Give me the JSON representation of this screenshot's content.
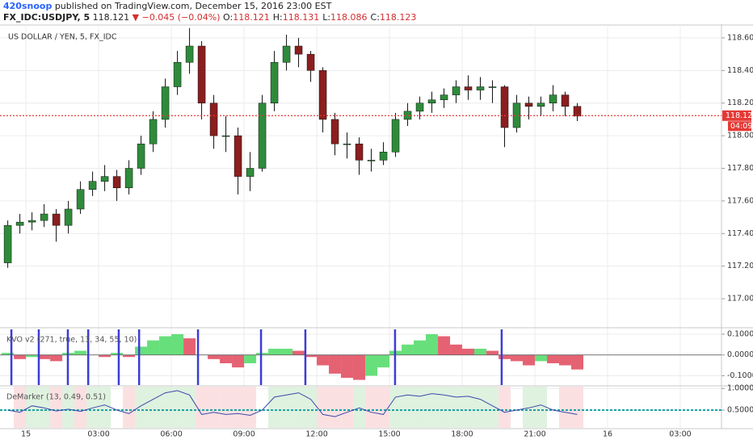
{
  "header": {
    "author": "420snoop",
    "published": "published on TradingView.com, December 15, 2016 23:00 EST",
    "symbol": "FX_IDC:USDJPY, 5",
    "last": "118.121",
    "change": "▼ −0.045 (−0.04%)",
    "ohlc": [
      [
        "O:",
        "118.121"
      ],
      [
        "H:",
        "118.131"
      ],
      [
        "L:",
        "118.086"
      ],
      [
        "C:",
        "118.123"
      ]
    ]
  },
  "chart_data": [
    {
      "type": "candlestick",
      "title": "US DOLLAR / YEN, 5, FX_IDC",
      "x": [
        -0.75,
        -0.25,
        0.25,
        0.75,
        1.25,
        1.75,
        2.25,
        2.75,
        3.25,
        3.75,
        4.25,
        4.75,
        5.25,
        5.75,
        6.25,
        6.75,
        7.25,
        7.75,
        8.25,
        8.75,
        9.25,
        9.75,
        10.25,
        10.75,
        11.25,
        11.75,
        12.25,
        12.75,
        13.25,
        13.75,
        14.25,
        14.75,
        15.25,
        15.75,
        16.25,
        16.75,
        17.25,
        17.75,
        18.25,
        18.75,
        19.25,
        19.75,
        20.25,
        20.75,
        21.25,
        21.75,
        22.25,
        22.75
      ],
      "open": [
        117.22,
        117.45,
        117.47,
        117.48,
        117.52,
        117.45,
        117.55,
        117.67,
        117.72,
        117.75,
        117.68,
        117.8,
        117.95,
        118.1,
        118.3,
        118.45,
        118.55,
        118.2,
        118.0,
        118.0,
        117.75,
        117.8,
        118.2,
        118.45,
        118.55,
        118.5,
        118.4,
        118.1,
        117.95,
        117.95,
        117.85,
        117.85,
        117.9,
        118.1,
        118.15,
        118.2,
        118.22,
        118.25,
        118.3,
        118.28,
        118.3,
        118.3,
        118.05,
        118.2,
        118.18,
        118.2,
        118.25,
        118.18
      ],
      "high": [
        117.48,
        117.52,
        117.53,
        117.58,
        117.55,
        117.6,
        117.72,
        117.78,
        117.82,
        117.79,
        117.85,
        118.0,
        118.15,
        118.35,
        118.52,
        118.66,
        118.58,
        118.25,
        118.12,
        118.05,
        117.9,
        118.25,
        118.52,
        118.62,
        118.6,
        118.52,
        118.42,
        118.14,
        118.02,
        117.99,
        117.92,
        117.96,
        118.14,
        118.2,
        118.24,
        118.27,
        118.29,
        118.34,
        118.37,
        118.36,
        118.34,
        118.31,
        118.25,
        118.24,
        118.24,
        118.31,
        118.27,
        118.2
      ],
      "low": [
        117.19,
        117.4,
        117.42,
        117.44,
        117.35,
        117.4,
        117.52,
        117.63,
        117.66,
        117.6,
        117.64,
        117.76,
        117.9,
        118.05,
        118.25,
        118.38,
        118.1,
        117.92,
        117.9,
        117.64,
        117.66,
        117.78,
        118.15,
        118.4,
        118.42,
        118.33,
        118.02,
        117.88,
        117.86,
        117.76,
        117.78,
        117.82,
        117.87,
        118.06,
        118.1,
        118.14,
        118.17,
        118.2,
        118.22,
        118.22,
        118.2,
        117.93,
        118.02,
        118.1,
        118.12,
        118.15,
        118.12,
        118.09
      ],
      "close": [
        117.45,
        117.47,
        117.48,
        117.52,
        117.45,
        117.55,
        117.67,
        117.72,
        117.75,
        117.68,
        117.8,
        117.95,
        118.1,
        118.3,
        118.45,
        118.55,
        118.2,
        118.0,
        118.0,
        117.75,
        117.8,
        118.2,
        118.45,
        118.55,
        118.5,
        118.4,
        118.1,
        117.95,
        117.95,
        117.85,
        117.85,
        117.9,
        118.1,
        118.15,
        118.2,
        118.22,
        118.25,
        118.3,
        118.28,
        118.3,
        118.3,
        118.05,
        118.2,
        118.18,
        118.2,
        118.25,
        118.18,
        118.12
      ],
      "up_color": "#2e8b3a",
      "down_color": "#8b1e1e",
      "xlim": [
        -1.07,
        28.7
      ],
      "xticks": [
        {
          "value": 0,
          "label": "15"
        },
        {
          "value": 3,
          "label": "03:00"
        },
        {
          "value": 6,
          "label": "06:00"
        },
        {
          "value": 9,
          "label": "09:00"
        },
        {
          "value": 12,
          "label": "12:00"
        },
        {
          "value": 15,
          "label": "15:00"
        },
        {
          "value": 18,
          "label": "18:00"
        },
        {
          "value": 21,
          "label": "21:00"
        },
        {
          "value": 24,
          "label": "16"
        },
        {
          "value": 27,
          "label": "03:00"
        }
      ],
      "ylim": [
        116.827,
        118.669
      ],
      "yticks": [
        {
          "value": 117.0,
          "label": "117.000"
        },
        {
          "value": 117.2,
          "label": "117.200"
        },
        {
          "value": 117.4,
          "label": "117.400"
        },
        {
          "value": 117.6,
          "label": "117.600"
        },
        {
          "value": 117.8,
          "label": "117.800"
        },
        {
          "value": 118.0,
          "label": "118.000"
        },
        {
          "value": 118.2,
          "label": "118.200"
        },
        {
          "value": 118.4,
          "label": "118.400"
        },
        {
          "value": 118.6,
          "label": "118.600"
        }
      ],
      "last_price": {
        "value": 118.123,
        "label": "118.123"
      },
      "countdown": "04:09",
      "last_price_color": "#e53935",
      "grid": true
    },
    {
      "type": "histogram",
      "title": "KVO v2 (271, true, 13, 34, 55, 10)",
      "values": [
        0.01,
        -0.02,
        -0.01,
        -0.02,
        -0.03,
        0.01,
        0.02,
        0.0,
        -0.01,
        0.01,
        -0.01,
        0.04,
        0.07,
        0.09,
        0.1,
        0.08,
        0.0,
        -0.02,
        -0.04,
        -0.06,
        -0.04,
        0.01,
        0.03,
        0.03,
        0.02,
        -0.01,
        -0.05,
        -0.09,
        -0.11,
        -0.12,
        -0.1,
        -0.06,
        0.02,
        0.05,
        0.07,
        0.1,
        0.09,
        0.05,
        0.03,
        0.03,
        0.02,
        -0.02,
        -0.03,
        -0.05,
        -0.03,
        -0.04,
        -0.05,
        -0.07
      ],
      "up_color": "#4cd964",
      "down_color": "#e0475a",
      "signals": [
        -0.6,
        0.53,
        1.73,
        2.57,
        3.83,
        4.67,
        7.1,
        9.7,
        11.53,
        15.23,
        19.63
      ],
      "signal_color": "#3c3cd8",
      "ylim": [
        -0.145,
        0.127
      ],
      "yticks": [
        {
          "value": 0.1,
          "label": "0.1000"
        },
        {
          "value": 0,
          "label": "0.0000"
        },
        {
          "value": -0.1,
          "label": "-0.1000"
        }
      ],
      "grid": true
    },
    {
      "type": "line",
      "title": "DeMarker (13, 0.49, 0.51)",
      "values": [
        0.5,
        0.45,
        0.6,
        0.55,
        0.48,
        0.52,
        0.47,
        0.55,
        0.62,
        0.5,
        0.42,
        0.6,
        0.75,
        0.9,
        0.95,
        0.85,
        0.4,
        0.45,
        0.4,
        0.42,
        0.38,
        0.5,
        0.8,
        0.85,
        0.9,
        0.75,
        0.4,
        0.35,
        0.45,
        0.55,
        0.45,
        0.4,
        0.8,
        0.85,
        0.82,
        0.88,
        0.85,
        0.8,
        0.82,
        0.75,
        0.6,
        0.45,
        0.5,
        0.55,
        0.62,
        0.5,
        0.45,
        0.4
      ],
      "color": "#3949ab",
      "levels": [
        0.49,
        0.51
      ],
      "level_color": "#1aa3a3",
      "high_zone_color": "#dff1df",
      "low_zone_color": "#fbe0e2",
      "ylim": [
        0.09,
        1.06
      ],
      "yticks": [
        {
          "value": 1,
          "label": "1.0000"
        },
        {
          "value": 0.5,
          "label": "0.5000"
        }
      ],
      "grid": true
    }
  ]
}
